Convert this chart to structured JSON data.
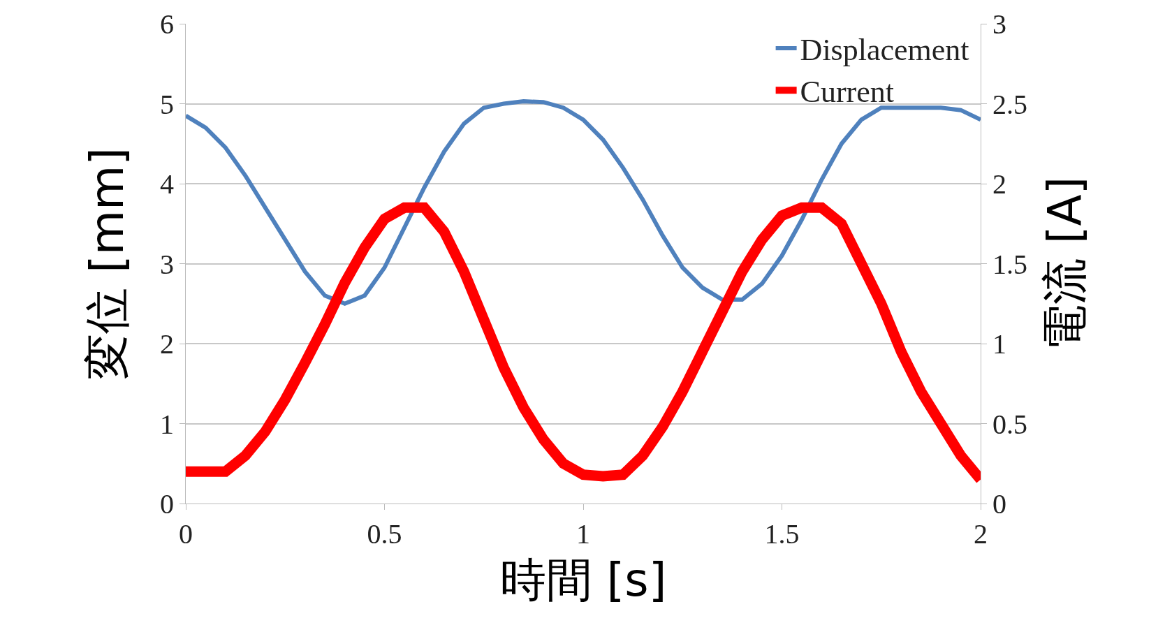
{
  "chart_data": {
    "type": "line",
    "xlabel": "時間 [s]",
    "ylabel": "変位 [mm]",
    "y2label": "電流 [A]",
    "xlim": [
      0,
      2
    ],
    "xticks": [
      0,
      0.5,
      1,
      1.5,
      2
    ],
    "ylim": [
      0,
      6
    ],
    "yticks": [
      0,
      1,
      2,
      3,
      4,
      5,
      6
    ],
    "y2lim": [
      0,
      3
    ],
    "y2ticks": [
      0,
      0.5,
      1,
      1.5,
      2,
      2.5,
      3
    ],
    "grid": "y",
    "legend": "top right",
    "marker": "none",
    "line_style": "solid",
    "x": [
      0,
      0.05,
      0.1,
      0.15,
      0.2,
      0.25,
      0.3,
      0.35,
      0.4,
      0.45,
      0.5,
      0.55,
      0.6,
      0.65,
      0.7,
      0.75,
      0.8,
      0.85,
      0.9,
      0.95,
      1,
      1.05,
      1.1,
      1.15,
      1.2,
      1.25,
      1.3,
      1.35,
      1.4,
      1.45,
      1.5,
      1.55,
      1.6,
      1.65,
      1.7,
      1.75,
      1.8,
      1.85,
      1.9,
      1.95,
      2
    ],
    "series": [
      {
        "name": "Displacement",
        "color": "#4f81bd",
        "values": [
          4.85,
          4.7,
          4.45,
          4.1,
          3.7,
          3.3,
          2.9,
          2.6,
          2.5,
          2.6,
          2.95,
          3.45,
          3.95,
          4.4,
          4.75,
          4.95,
          5,
          5.03,
          5.02,
          4.95,
          4.8,
          4.55,
          4.2,
          3.8,
          3.35,
          2.95,
          2.7,
          2.55,
          2.55,
          2.75,
          3.1,
          3.55,
          4.05,
          4.5,
          4.8,
          4.95,
          4.95,
          4.95,
          4.95,
          4.92,
          4.8
        ]
      },
      {
        "name": "Current",
        "color": "#ff0000",
        "axis": "y2",
        "values": [
          0.2,
          0.2,
          0.2,
          0.3,
          0.45,
          0.65,
          0.88,
          1.12,
          1.38,
          1.6,
          1.78,
          1.85,
          1.85,
          1.7,
          1.45,
          1.15,
          0.85,
          0.6,
          0.4,
          0.25,
          0.18,
          0.17,
          0.18,
          0.3,
          0.48,
          0.7,
          0.95,
          1.2,
          1.45,
          1.65,
          1.8,
          1.85,
          1.85,
          1.75,
          1.5,
          1.25,
          0.95,
          0.7,
          0.5,
          0.3,
          0.15
        ]
      }
    ]
  }
}
